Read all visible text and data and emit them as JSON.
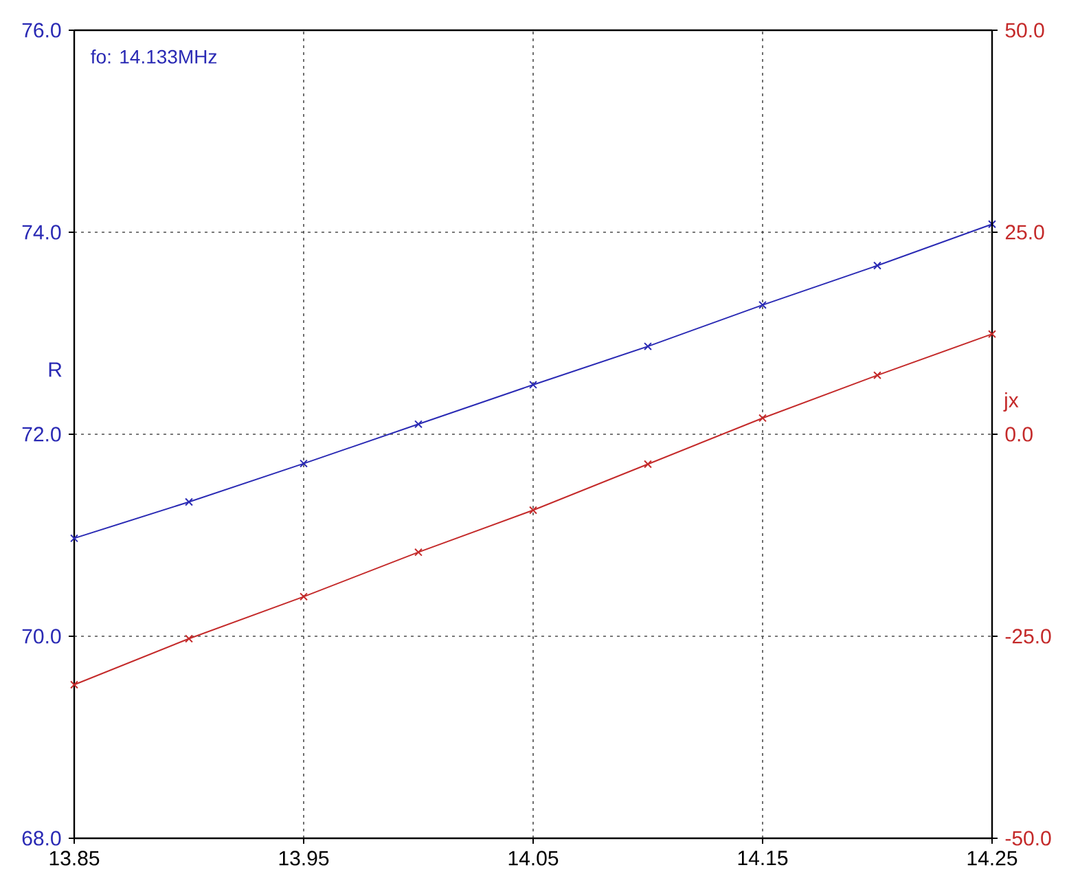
{
  "chart_data": {
    "type": "line",
    "x": [
      13.85,
      13.9,
      13.95,
      14.0,
      14.05,
      14.1,
      14.15,
      14.2,
      14.25
    ],
    "series": [
      {
        "color": "#2a2ab4",
        "values": [
          70.97,
          71.33,
          71.71,
          72.1,
          72.49,
          72.87,
          73.28,
          73.67,
          74.08
        ]
      },
      {
        "color": "#c42a2a",
        "axis": "y2",
        "values": [
          -31.0,
          -25.3,
          -20.1,
          -14.6,
          -9.4,
          -3.7,
          2.0,
          7.3,
          12.4
        ]
      }
    ],
    "ylabel": "R",
    "y2label": "jx",
    "annotations": [
      "fo: 14.133MHz"
    ],
    "xlim": [
      13.85,
      14.25
    ],
    "xticks": [
      13.85,
      13.95,
      14.05,
      14.15,
      14.25
    ],
    "ylim": [
      68,
      76
    ],
    "yticks": [
      {
        "value": 68,
        "label": "68.0"
      },
      {
        "value": 70,
        "label": "70.0"
      },
      {
        "value": 72,
        "label": "72.0"
      },
      {
        "value": 74,
        "label": "74.0"
      },
      {
        "value": 76,
        "label": "76.0"
      }
    ],
    "y2lim": [
      -50,
      50
    ],
    "y2ticks": [
      {
        "value": -50,
        "label": "-50.0"
      },
      {
        "value": -25,
        "label": "-25.0"
      },
      {
        "value": 0,
        "label": "0.0"
      },
      {
        "value": 25,
        "label": "25.0"
      },
      {
        "value": 50,
        "label": "50.0"
      }
    ],
    "grid": true,
    "marker": "cross",
    "line_style": "solid"
  }
}
